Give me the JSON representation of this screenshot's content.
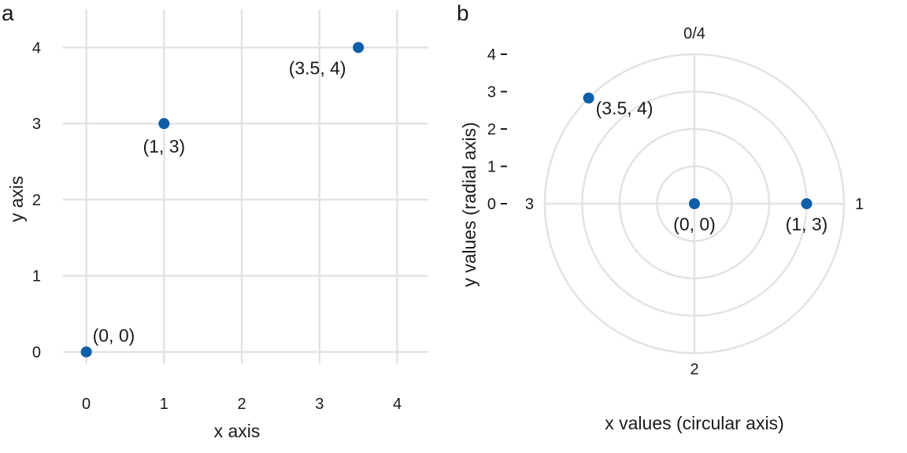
{
  "chart_data": [
    {
      "panel": "a",
      "type": "scatter",
      "coordinate_system": "cartesian",
      "xlabel": "x axis",
      "ylabel": "y axis",
      "xlim": [
        -0.3,
        4.4
      ],
      "ylim": [
        -0.15,
        4.5
      ],
      "xticks": [
        0,
        1,
        2,
        3,
        4
      ],
      "yticks": [
        0,
        1,
        2,
        3,
        4
      ],
      "grid": true,
      "point_color": "#0f5ea8",
      "points": [
        {
          "x": 0,
          "y": 0,
          "label": "(0, 0)"
        },
        {
          "x": 1,
          "y": 3,
          "label": "(1, 3)"
        },
        {
          "x": 3.5,
          "y": 4,
          "label": "(3.5, 4)"
        }
      ]
    },
    {
      "panel": "b",
      "type": "scatter",
      "coordinate_system": "polar",
      "xlabel": "x values (circular axis)",
      "ylabel": "y values (radial axis)",
      "theta_period": 4,
      "theta_tick_labels": [
        "0/4",
        "1",
        "2",
        "3"
      ],
      "rlim": [
        0,
        4
      ],
      "rticks": [
        0,
        1,
        2,
        3,
        4
      ],
      "grid": true,
      "point_color": "#0f5ea8",
      "points": [
        {
          "x": 0,
          "y": 0,
          "label": "(0, 0)"
        },
        {
          "x": 1,
          "y": 3,
          "label": "(1, 3)"
        },
        {
          "x": 3.5,
          "y": 4,
          "label": "(3.5, 4)"
        }
      ]
    }
  ]
}
